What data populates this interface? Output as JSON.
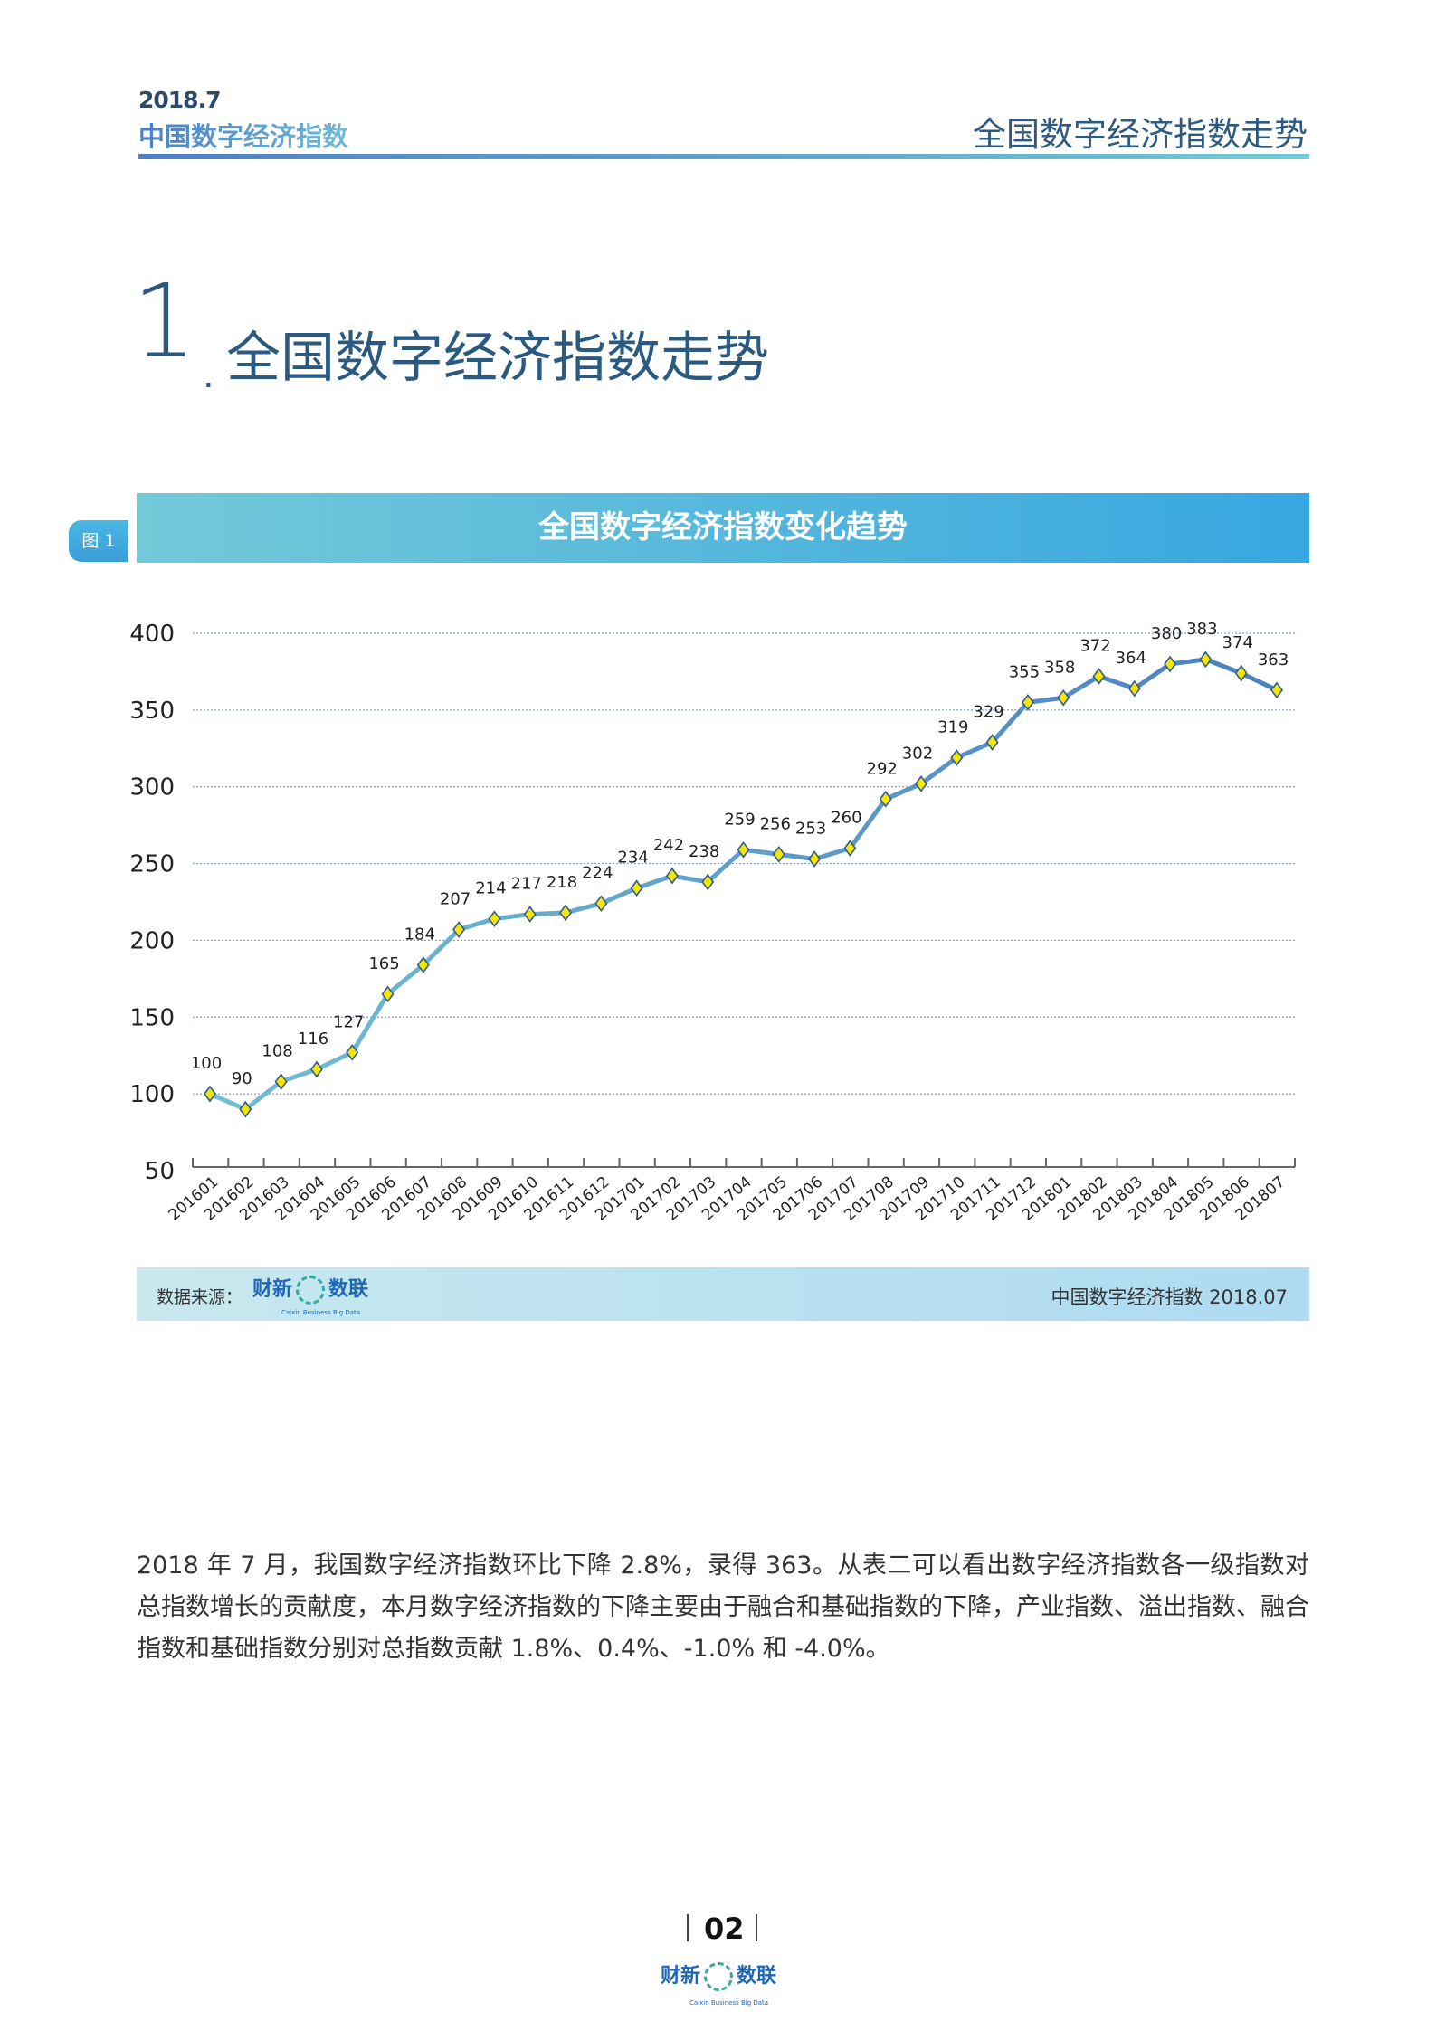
{
  "header": {
    "year": "2018.7",
    "brand": "中国数字经济指数",
    "section_title": "全国数字经济指数走势"
  },
  "section": {
    "number": "1",
    "title": "全国数字经济指数走势"
  },
  "figure": {
    "tag": "图 1",
    "title": "全国数字经济指数变化趋势"
  },
  "chart_data": {
    "type": "line",
    "title": "全国数字经济指数变化趋势",
    "xlabel": "",
    "ylabel": "",
    "ylim": [
      50,
      400
    ],
    "yticks": [
      50,
      100,
      150,
      200,
      250,
      300,
      350,
      400
    ],
    "grid": true,
    "categories": [
      "201601",
      "201602",
      "201603",
      "201604",
      "201605",
      "201606",
      "201607",
      "201608",
      "201609",
      "201610",
      "201611",
      "201612",
      "201701",
      "201702",
      "201703",
      "201704",
      "201705",
      "201706",
      "201707",
      "201708",
      "201709",
      "201710",
      "201711",
      "201712",
      "201801",
      "201802",
      "201803",
      "201804",
      "201805",
      "201806",
      "201807"
    ],
    "values": [
      100,
      90,
      108,
      116,
      127,
      165,
      184,
      207,
      214,
      217,
      218,
      224,
      234,
      242,
      238,
      259,
      256,
      253,
      260,
      292,
      302,
      319,
      329,
      355,
      358,
      372,
      364,
      380,
      383,
      374,
      363
    ],
    "colors": {
      "line_start": "#72bfd2",
      "line_end": "#4d7fc0",
      "marker_fill": "#f5e600",
      "marker_stroke": "#2f5a9a",
      "grid": "#8a9ac8"
    }
  },
  "source": {
    "label": "数据来源：",
    "logo_text_left": "财新",
    "logo_text_right": "数联",
    "logo_sub": "Caixin Business Big Data",
    "right_text": "中国数字经济指数 2018.07"
  },
  "paragraph": "2018 年 7 月，我国数字经济指数环比下降 2.8%，录得 363。从表二可以看出数字经济指数各一级指数对总指数增长的贡献度，本月数字经济指数的下降主要由于融合和基础指数的下降，产业指数、溢出指数、融合指数和基础指数分别对总指数贡献 1.8%、0.4%、-1.0% 和 -4.0%。",
  "footer": {
    "page": "02",
    "logo_text_left": "财新",
    "logo_text_right": "数联",
    "logo_sub": "Caixin Business Big Data"
  }
}
